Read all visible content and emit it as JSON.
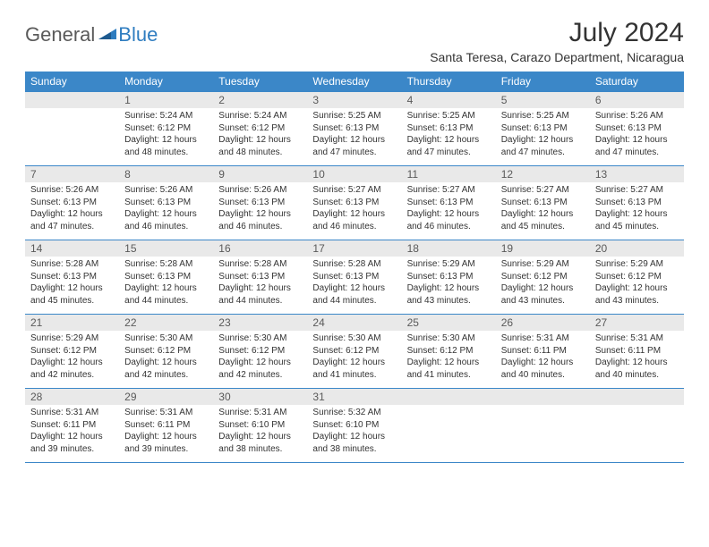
{
  "logo": {
    "general": "General",
    "blue": "Blue"
  },
  "title": "July 2024",
  "location": "Santa Teresa, Carazo Department, Nicaragua",
  "colors": {
    "header_bg": "#3b87c8",
    "header_text": "#ffffff",
    "daynum_bg": "#e9e9e9",
    "daynum_text": "#5a5a5a",
    "body_text": "#333333",
    "rule": "#3b87c8",
    "logo_gray": "#5a5a5a",
    "logo_blue": "#2f7dc0"
  },
  "typography": {
    "title_fontsize": 30,
    "location_fontsize": 14,
    "header_fontsize": 12,
    "daynum_fontsize": 12,
    "cell_fontsize": 10
  },
  "day_headers": [
    "Sunday",
    "Monday",
    "Tuesday",
    "Wednesday",
    "Thursday",
    "Friday",
    "Saturday"
  ],
  "weeks": [
    [
      {
        "n": "",
        "sr": "",
        "ss": "",
        "dl": ""
      },
      {
        "n": "1",
        "sr": "5:24 AM",
        "ss": "6:12 PM",
        "dl": "12 hours and 48 minutes."
      },
      {
        "n": "2",
        "sr": "5:24 AM",
        "ss": "6:12 PM",
        "dl": "12 hours and 48 minutes."
      },
      {
        "n": "3",
        "sr": "5:25 AM",
        "ss": "6:13 PM",
        "dl": "12 hours and 47 minutes."
      },
      {
        "n": "4",
        "sr": "5:25 AM",
        "ss": "6:13 PM",
        "dl": "12 hours and 47 minutes."
      },
      {
        "n": "5",
        "sr": "5:25 AM",
        "ss": "6:13 PM",
        "dl": "12 hours and 47 minutes."
      },
      {
        "n": "6",
        "sr": "5:26 AM",
        "ss": "6:13 PM",
        "dl": "12 hours and 47 minutes."
      }
    ],
    [
      {
        "n": "7",
        "sr": "5:26 AM",
        "ss": "6:13 PM",
        "dl": "12 hours and 47 minutes."
      },
      {
        "n": "8",
        "sr": "5:26 AM",
        "ss": "6:13 PM",
        "dl": "12 hours and 46 minutes."
      },
      {
        "n": "9",
        "sr": "5:26 AM",
        "ss": "6:13 PM",
        "dl": "12 hours and 46 minutes."
      },
      {
        "n": "10",
        "sr": "5:27 AM",
        "ss": "6:13 PM",
        "dl": "12 hours and 46 minutes."
      },
      {
        "n": "11",
        "sr": "5:27 AM",
        "ss": "6:13 PM",
        "dl": "12 hours and 46 minutes."
      },
      {
        "n": "12",
        "sr": "5:27 AM",
        "ss": "6:13 PM",
        "dl": "12 hours and 45 minutes."
      },
      {
        "n": "13",
        "sr": "5:27 AM",
        "ss": "6:13 PM",
        "dl": "12 hours and 45 minutes."
      }
    ],
    [
      {
        "n": "14",
        "sr": "5:28 AM",
        "ss": "6:13 PM",
        "dl": "12 hours and 45 minutes."
      },
      {
        "n": "15",
        "sr": "5:28 AM",
        "ss": "6:13 PM",
        "dl": "12 hours and 44 minutes."
      },
      {
        "n": "16",
        "sr": "5:28 AM",
        "ss": "6:13 PM",
        "dl": "12 hours and 44 minutes."
      },
      {
        "n": "17",
        "sr": "5:28 AM",
        "ss": "6:13 PM",
        "dl": "12 hours and 44 minutes."
      },
      {
        "n": "18",
        "sr": "5:29 AM",
        "ss": "6:13 PM",
        "dl": "12 hours and 43 minutes."
      },
      {
        "n": "19",
        "sr": "5:29 AM",
        "ss": "6:12 PM",
        "dl": "12 hours and 43 minutes."
      },
      {
        "n": "20",
        "sr": "5:29 AM",
        "ss": "6:12 PM",
        "dl": "12 hours and 43 minutes."
      }
    ],
    [
      {
        "n": "21",
        "sr": "5:29 AM",
        "ss": "6:12 PM",
        "dl": "12 hours and 42 minutes."
      },
      {
        "n": "22",
        "sr": "5:30 AM",
        "ss": "6:12 PM",
        "dl": "12 hours and 42 minutes."
      },
      {
        "n": "23",
        "sr": "5:30 AM",
        "ss": "6:12 PM",
        "dl": "12 hours and 42 minutes."
      },
      {
        "n": "24",
        "sr": "5:30 AM",
        "ss": "6:12 PM",
        "dl": "12 hours and 41 minutes."
      },
      {
        "n": "25",
        "sr": "5:30 AM",
        "ss": "6:12 PM",
        "dl": "12 hours and 41 minutes."
      },
      {
        "n": "26",
        "sr": "5:31 AM",
        "ss": "6:11 PM",
        "dl": "12 hours and 40 minutes."
      },
      {
        "n": "27",
        "sr": "5:31 AM",
        "ss": "6:11 PM",
        "dl": "12 hours and 40 minutes."
      }
    ],
    [
      {
        "n": "28",
        "sr": "5:31 AM",
        "ss": "6:11 PM",
        "dl": "12 hours and 39 minutes."
      },
      {
        "n": "29",
        "sr": "5:31 AM",
        "ss": "6:11 PM",
        "dl": "12 hours and 39 minutes."
      },
      {
        "n": "30",
        "sr": "5:31 AM",
        "ss": "6:10 PM",
        "dl": "12 hours and 38 minutes."
      },
      {
        "n": "31",
        "sr": "5:32 AM",
        "ss": "6:10 PM",
        "dl": "12 hours and 38 minutes."
      },
      {
        "n": "",
        "sr": "",
        "ss": "",
        "dl": ""
      },
      {
        "n": "",
        "sr": "",
        "ss": "",
        "dl": ""
      },
      {
        "n": "",
        "sr": "",
        "ss": "",
        "dl": ""
      }
    ]
  ]
}
